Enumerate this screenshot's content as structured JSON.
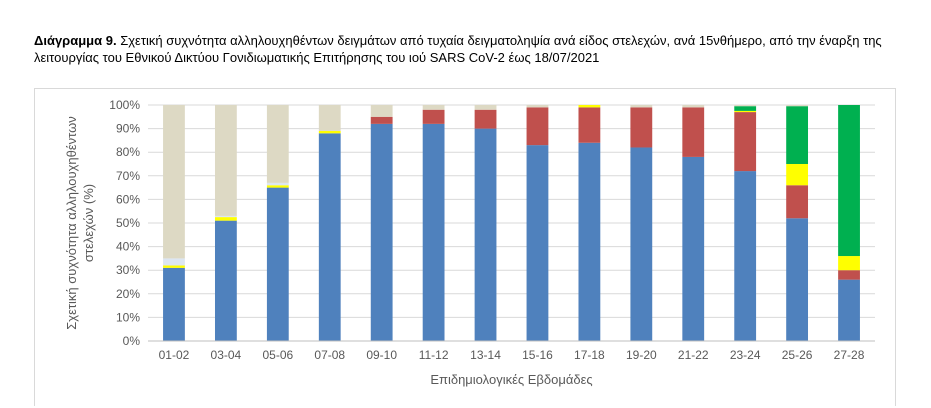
{
  "caption": {
    "label": "Διάγραμμα 9.",
    "text": " Σχετική συχνότητα αλληλουχηθέντων δειγμάτων από τυχαία δειγματοληψία ανά είδος στελεχών, ανά 15νθήμερο, από την έναρξη της λειτουργίας του Εθνικού Δικτύου Γονιδιωματικής Επιτήρησης του ιού SARS CoV-2 έως 18/07/2021"
  },
  "chart_data": {
    "type": "bar",
    "stacked": true,
    "xlabel": "Επιδημιολογικές Εβδομάδες",
    "ylabel": "Σχετική συχνότητα αλληλουχηθέντων στελεχών (%)",
    "ylim": [
      0,
      100
    ],
    "yticks": [
      "0%",
      "10%",
      "20%",
      "30%",
      "40%",
      "50%",
      "60%",
      "70%",
      "80%",
      "90%",
      "100%"
    ],
    "grid": true,
    "categories": [
      "01-02",
      "03-04",
      "05-06",
      "07-08",
      "09-10",
      "11-12",
      "13-14",
      "15-16",
      "17-18",
      "19-20",
      "21-22",
      "23-24",
      "25-26",
      "27-28"
    ],
    "series": [
      {
        "color": "#4f81bd",
        "values": [
          31,
          51,
          65,
          88,
          92,
          92,
          90,
          83,
          84,
          82,
          78,
          72,
          52,
          26
        ]
      },
      {
        "color": "#c0504d",
        "values": [
          0,
          0,
          0,
          0,
          3,
          6,
          8,
          16,
          15,
          17,
          21,
          25,
          14,
          4
        ]
      },
      {
        "color": "#ffff00",
        "values": [
          1,
          1.5,
          1,
          1,
          0,
          0,
          0,
          0,
          1,
          0,
          0,
          0.5,
          9,
          6
        ]
      },
      {
        "color": "#00b050",
        "values": [
          0,
          0,
          0,
          0,
          0,
          0,
          0,
          0,
          0,
          0,
          0,
          2,
          24.5,
          64
        ]
      },
      {
        "color": "#dce6f2",
        "values": [
          3,
          0.5,
          1,
          0,
          0,
          0,
          0,
          0,
          0,
          0,
          0,
          0,
          0,
          0
        ]
      },
      {
        "color": "#ddd9c4",
        "values": [
          65,
          47,
          33,
          11,
          5,
          2,
          2,
          1,
          0,
          1,
          1,
          0.5,
          0.5,
          0
        ]
      }
    ]
  }
}
